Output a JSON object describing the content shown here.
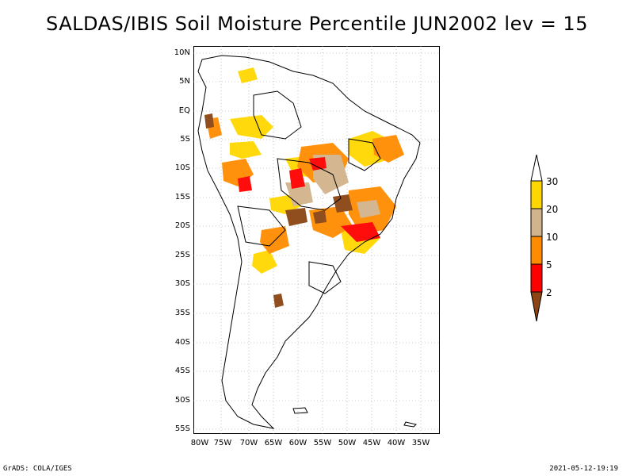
{
  "title": "SALDAS/IBIS Soil Moisture Percentile JUN2002 lev = 15",
  "axes": {
    "lat_labels": [
      "10N",
      "5N",
      "EQ",
      "5S",
      "10S",
      "15S",
      "20S",
      "25S",
      "30S",
      "35S",
      "40S",
      "45S",
      "50S",
      "55S"
    ],
    "lon_labels": [
      "80W",
      "75W",
      "70W",
      "65W",
      "60W",
      "55W",
      "50W",
      "45W",
      "40W",
      "35W"
    ]
  },
  "colorbar": {
    "labels": [
      "30",
      "20",
      "10",
      "5",
      "2"
    ],
    "colors": [
      "#ffd700",
      "#d2b48c",
      "#ff8c00",
      "#ff0000",
      "#8b4513"
    ]
  },
  "footer": {
    "left": "GrADS: COLA/IGES",
    "right": "2021-05-12-19:19"
  }
}
